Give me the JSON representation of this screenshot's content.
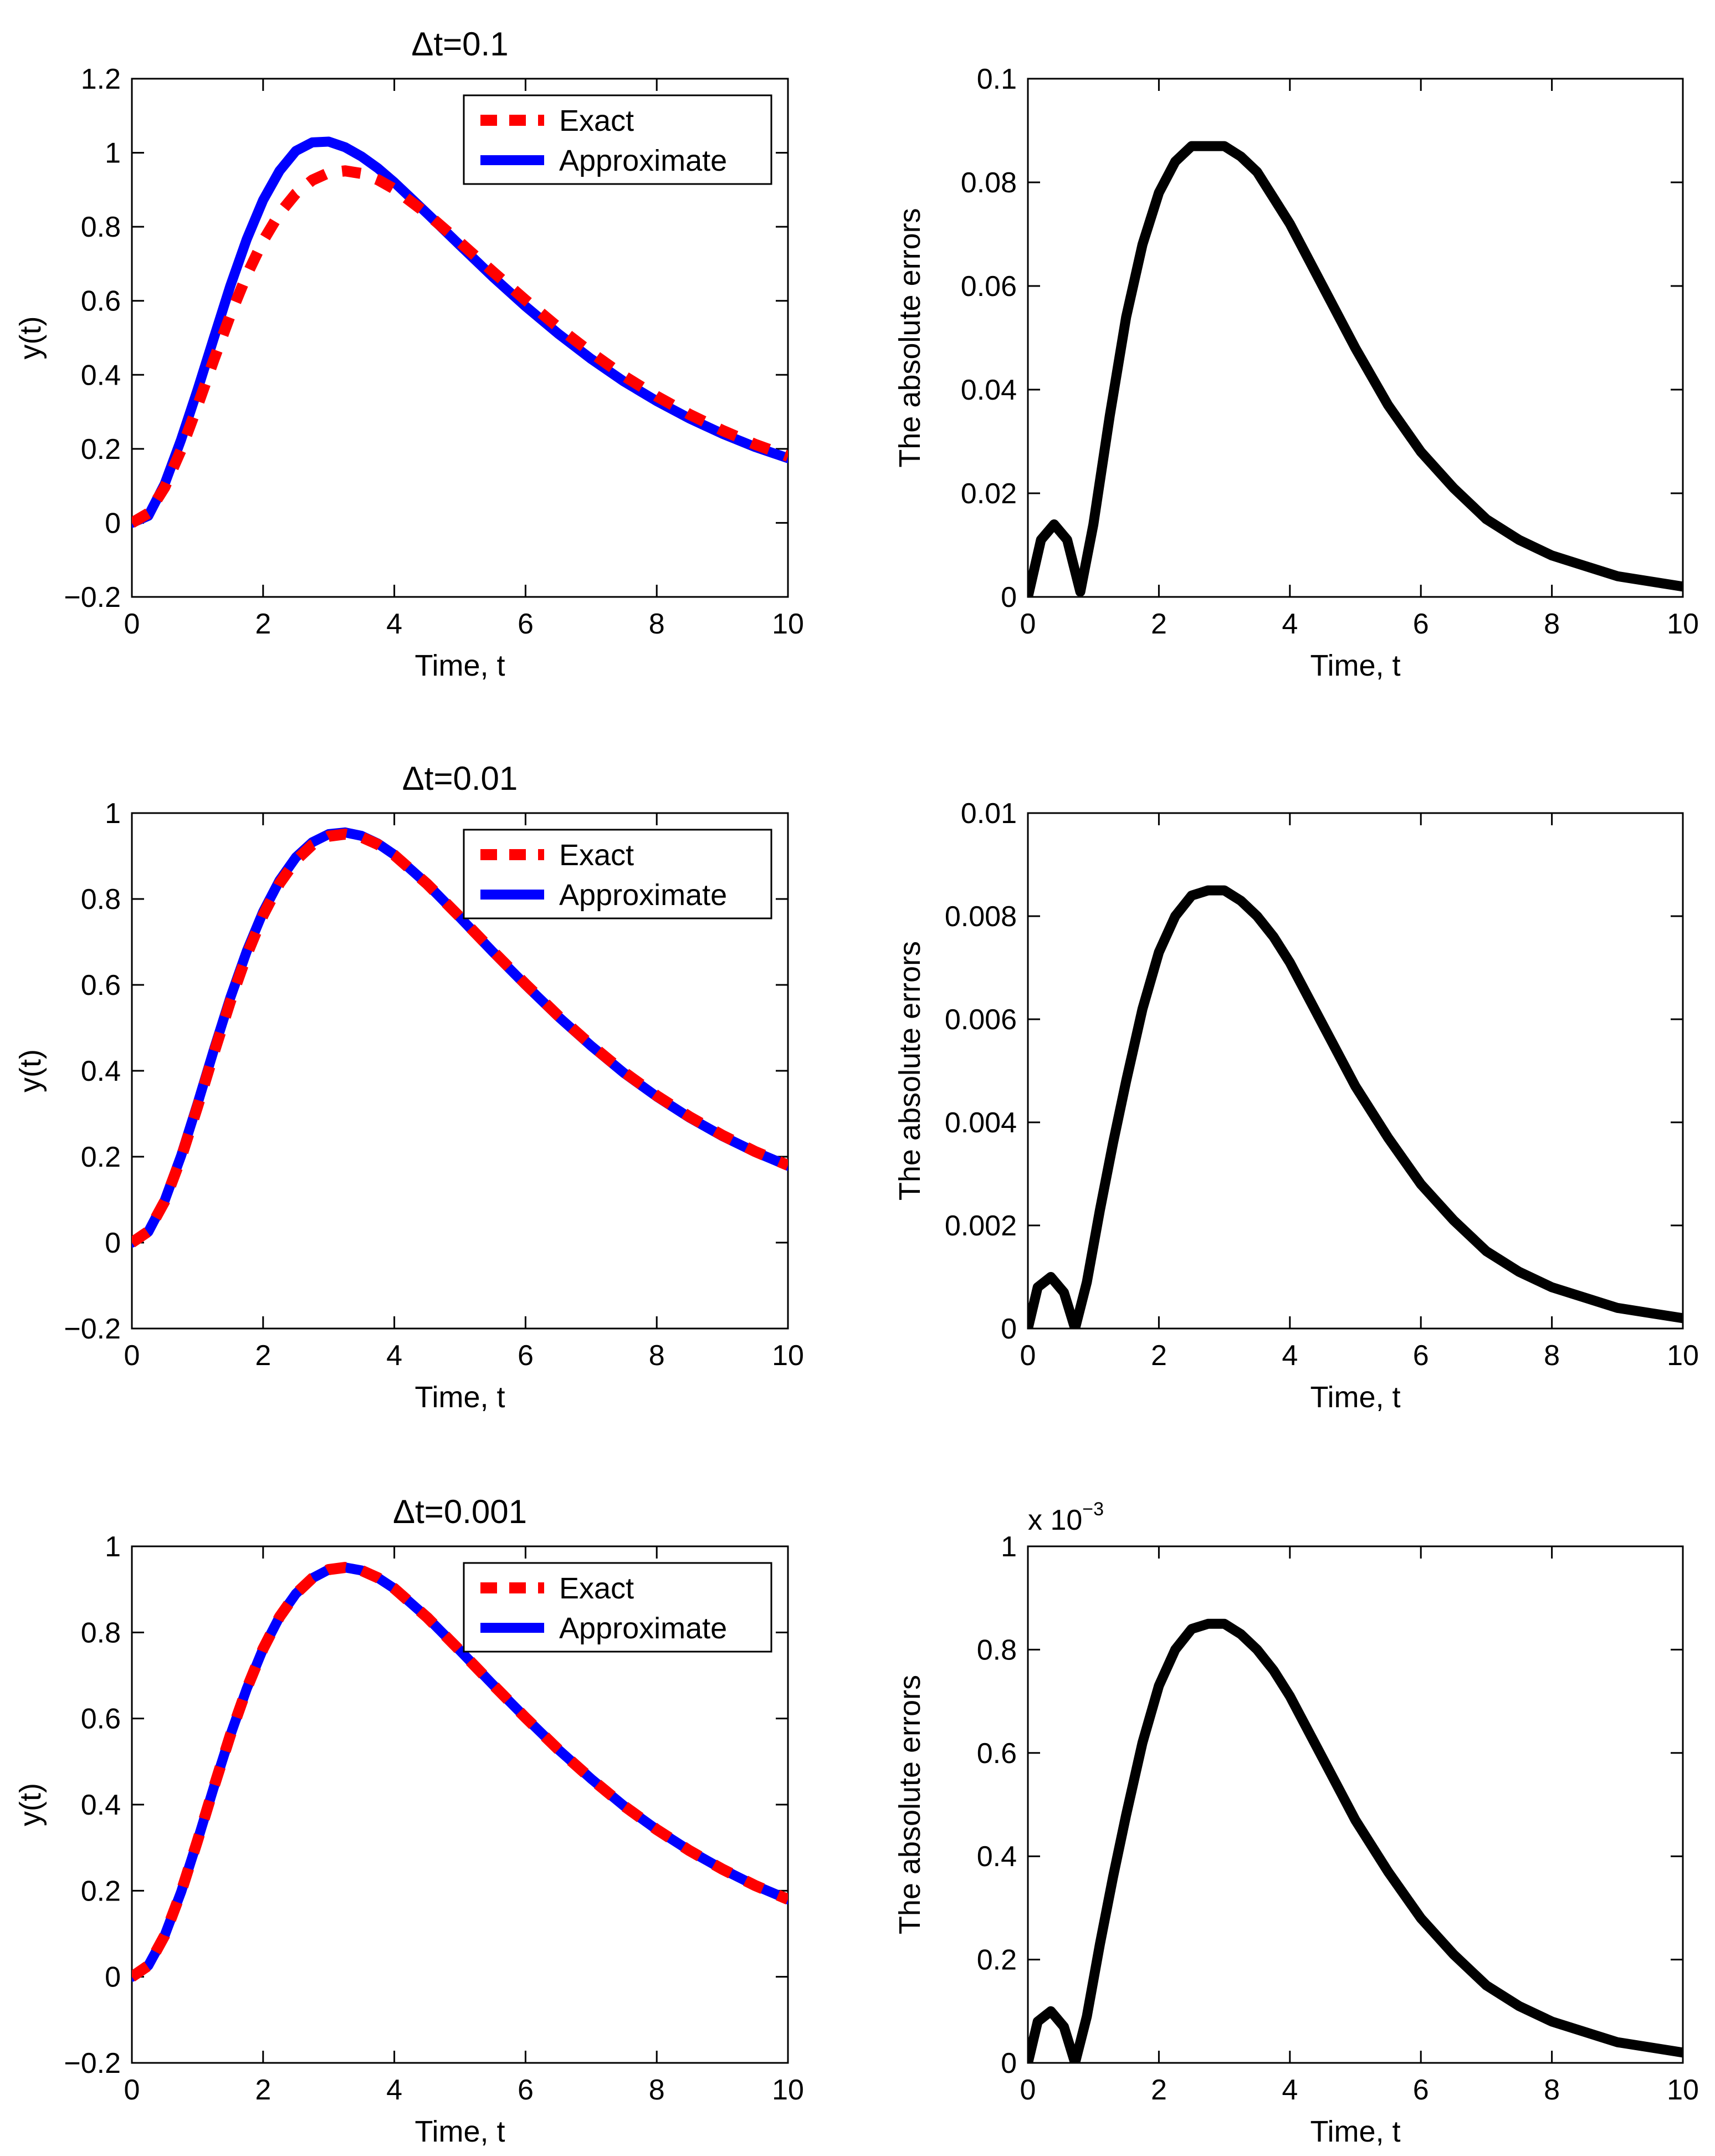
{
  "chart_data": [
    {
      "type": "line",
      "title": "Δt=0.1",
      "xlabel": "Time, t",
      "ylabel": "y(t)",
      "xlim": [
        0,
        10
      ],
      "ylim": [
        -0.2,
        1.2
      ],
      "xticks": [
        "0",
        "2",
        "4",
        "6",
        "8",
        "10"
      ],
      "yticks": [
        "−0.2",
        "0",
        "0.2",
        "0.4",
        "0.6",
        "0.8",
        "1",
        "1.2"
      ],
      "legend_position": "top-right",
      "series": [
        {
          "name": "Exact",
          "color": "#ff0000",
          "style": "dashed",
          "x": [
            0,
            0.25,
            0.5,
            0.75,
            1,
            1.25,
            1.5,
            1.75,
            2,
            2.25,
            2.5,
            2.75,
            3,
            3.25,
            3.5,
            3.75,
            4,
            4.5,
            5,
            5.5,
            6,
            6.5,
            7,
            7.5,
            8,
            8.5,
            9,
            9.5,
            10
          ],
          "y": [
            0,
            0.026,
            0.096,
            0.197,
            0.316,
            0.441,
            0.561,
            0.669,
            0.762,
            0.836,
            0.89,
            0.926,
            0.946,
            0.951,
            0.944,
            0.927,
            0.902,
            0.835,
            0.758,
            0.679,
            0.602,
            0.528,
            0.46,
            0.397,
            0.342,
            0.293,
            0.25,
            0.212,
            0.18
          ]
        },
        {
          "name": "Approximate",
          "color": "#0000ff",
          "style": "solid",
          "x": [
            0,
            0.25,
            0.5,
            0.75,
            1,
            1.25,
            1.5,
            1.75,
            2,
            2.25,
            2.5,
            2.75,
            3,
            3.25,
            3.5,
            3.75,
            4,
            4.5,
            5,
            5.5,
            6,
            6.5,
            7,
            7.5,
            8,
            8.5,
            9,
            9.5,
            10
          ],
          "y": [
            0,
            0.019,
            0.105,
            0.225,
            0.359,
            0.5,
            0.64,
            0.766,
            0.872,
            0.951,
            1.005,
            1.028,
            1.03,
            1.015,
            0.99,
            0.958,
            0.92,
            0.836,
            0.75,
            0.665,
            0.585,
            0.511,
            0.443,
            0.382,
            0.329,
            0.282,
            0.241,
            0.205,
            0.175
          ]
        }
      ]
    },
    {
      "type": "line",
      "title": "",
      "xlabel": "Time, t",
      "ylabel": "The absolute errors",
      "xlim": [
        0,
        10
      ],
      "ylim": [
        0,
        0.1
      ],
      "xticks": [
        "0",
        "2",
        "4",
        "6",
        "8",
        "10"
      ],
      "yticks": [
        "0",
        "0.02",
        "0.04",
        "0.06",
        "0.08",
        "0.1"
      ],
      "series": [
        {
          "color": "#000000",
          "style": "solid",
          "x": [
            0,
            0.2,
            0.4,
            0.6,
            0.8,
            1,
            1.25,
            1.5,
            1.75,
            2,
            2.25,
            2.5,
            2.75,
            3,
            3.25,
            3.5,
            3.75,
            4,
            4.5,
            5,
            5.5,
            6,
            6.5,
            7,
            7.5,
            8,
            8.5,
            9,
            9.5,
            10
          ],
          "y": [
            0,
            0.011,
            0.014,
            0.011,
            0.001,
            0.014,
            0.035,
            0.054,
            0.068,
            0.078,
            0.084,
            0.087,
            0.087,
            0.087,
            0.085,
            0.082,
            0.077,
            0.072,
            0.06,
            0.048,
            0.037,
            0.028,
            0.021,
            0.015,
            0.011,
            0.008,
            0.006,
            0.004,
            0.003,
            0.002
          ]
        }
      ]
    },
    {
      "type": "line",
      "title": "Δt=0.01",
      "xlabel": "Time, t",
      "ylabel": "y(t)",
      "xlim": [
        0,
        10
      ],
      "ylim": [
        -0.2,
        1
      ],
      "xticks": [
        "0",
        "2",
        "4",
        "6",
        "8",
        "10"
      ],
      "yticks": [
        "−0.2",
        "0",
        "0.2",
        "0.4",
        "0.6",
        "0.8",
        "1"
      ],
      "legend_position": "top-right",
      "series": [
        {
          "name": "Exact",
          "color": "#ff0000",
          "style": "dashed",
          "x": [
            0,
            0.25,
            0.5,
            0.75,
            1,
            1.25,
            1.5,
            1.75,
            2,
            2.25,
            2.5,
            2.75,
            3,
            3.25,
            3.5,
            3.75,
            4,
            4.5,
            5,
            5.5,
            6,
            6.5,
            7,
            7.5,
            8,
            8.5,
            9,
            9.5,
            10
          ],
          "y": [
            0,
            0.026,
            0.096,
            0.197,
            0.316,
            0.441,
            0.561,
            0.669,
            0.762,
            0.836,
            0.89,
            0.926,
            0.946,
            0.951,
            0.944,
            0.927,
            0.902,
            0.835,
            0.758,
            0.679,
            0.602,
            0.528,
            0.46,
            0.397,
            0.342,
            0.293,
            0.25,
            0.212,
            0.18
          ]
        },
        {
          "name": "Approximate",
          "color": "#0000ff",
          "style": "solid",
          "x": [
            0,
            0.25,
            0.5,
            0.75,
            1,
            1.25,
            1.5,
            1.75,
            2,
            2.25,
            2.5,
            2.75,
            3,
            3.25,
            3.5,
            3.75,
            4,
            4.5,
            5,
            5.5,
            6,
            6.5,
            7,
            7.5,
            8,
            8.5,
            9,
            9.5,
            10
          ],
          "y": [
            0,
            0.025,
            0.098,
            0.202,
            0.323,
            0.449,
            0.57,
            0.678,
            0.77,
            0.843,
            0.897,
            0.932,
            0.951,
            0.955,
            0.947,
            0.929,
            0.903,
            0.835,
            0.757,
            0.677,
            0.6,
            0.526,
            0.458,
            0.395,
            0.34,
            0.291,
            0.248,
            0.211,
            0.179
          ]
        }
      ]
    },
    {
      "type": "line",
      "title": "",
      "xlabel": "Time, t",
      "ylabel": "The absolute errors",
      "xlim": [
        0,
        10
      ],
      "ylim": [
        0,
        0.01
      ],
      "xticks": [
        "0",
        "2",
        "4",
        "6",
        "8",
        "10"
      ],
      "yticks": [
        "0",
        "0.002",
        "0.004",
        "0.006",
        "0.008",
        "0.01"
      ],
      "series": [
        {
          "color": "#000000",
          "style": "solid",
          "x": [
            0,
            0.15,
            0.35,
            0.55,
            0.72,
            0.9,
            1.1,
            1.3,
            1.5,
            1.75,
            2,
            2.25,
            2.5,
            2.75,
            3,
            3.25,
            3.5,
            3.75,
            4,
            4.5,
            5,
            5.5,
            6,
            6.5,
            7,
            7.5,
            8,
            8.5,
            9,
            9.5,
            10
          ],
          "y": [
            0,
            0.0008,
            0.001,
            0.0007,
            0,
            0.0009,
            0.0023,
            0.0036,
            0.0048,
            0.0062,
            0.0073,
            0.008,
            0.0084,
            0.0085,
            0.0085,
            0.0083,
            0.008,
            0.0076,
            0.0071,
            0.0059,
            0.0047,
            0.0037,
            0.0028,
            0.0021,
            0.0015,
            0.0011,
            0.0008,
            0.0006,
            0.0004,
            0.0003,
            0.0002
          ]
        }
      ]
    },
    {
      "type": "line",
      "title": "Δt=0.001",
      "xlabel": "Time, t",
      "ylabel": "y(t)",
      "xlim": [
        0,
        10
      ],
      "ylim": [
        -0.2,
        1
      ],
      "xticks": [
        "0",
        "2",
        "4",
        "6",
        "8",
        "10"
      ],
      "yticks": [
        "−0.2",
        "0",
        "0.2",
        "0.4",
        "0.6",
        "0.8",
        "1"
      ],
      "legend_position": "top-right",
      "series": [
        {
          "name": "Exact",
          "color": "#ff0000",
          "style": "dashed",
          "x": [
            0,
            0.25,
            0.5,
            0.75,
            1,
            1.25,
            1.5,
            1.75,
            2,
            2.25,
            2.5,
            2.75,
            3,
            3.25,
            3.5,
            3.75,
            4,
            4.5,
            5,
            5.5,
            6,
            6.5,
            7,
            7.5,
            8,
            8.5,
            9,
            9.5,
            10
          ],
          "y": [
            0,
            0.026,
            0.096,
            0.197,
            0.316,
            0.441,
            0.561,
            0.669,
            0.762,
            0.836,
            0.89,
            0.926,
            0.946,
            0.951,
            0.944,
            0.927,
            0.902,
            0.835,
            0.758,
            0.679,
            0.602,
            0.528,
            0.46,
            0.397,
            0.342,
            0.293,
            0.25,
            0.212,
            0.18
          ]
        },
        {
          "name": "Approximate",
          "color": "#0000ff",
          "style": "solid",
          "x": [
            0,
            0.25,
            0.5,
            0.75,
            1,
            1.25,
            1.5,
            1.75,
            2,
            2.25,
            2.5,
            2.75,
            3,
            3.25,
            3.5,
            3.75,
            4,
            4.5,
            5,
            5.5,
            6,
            6.5,
            7,
            7.5,
            8,
            8.5,
            9,
            9.5,
            10
          ],
          "y": [
            0,
            0.026,
            0.096,
            0.197,
            0.316,
            0.441,
            0.561,
            0.669,
            0.762,
            0.836,
            0.89,
            0.926,
            0.946,
            0.951,
            0.944,
            0.927,
            0.902,
            0.835,
            0.758,
            0.679,
            0.602,
            0.528,
            0.46,
            0.397,
            0.342,
            0.293,
            0.25,
            0.212,
            0.18
          ]
        }
      ]
    },
    {
      "type": "line",
      "title": "",
      "xlabel": "Time, t",
      "ylabel": "The absolute errors",
      "xlim": [
        0,
        10
      ],
      "ylim": [
        0,
        1
      ],
      "scale_label": "x 10",
      "scale_exponent": "−3",
      "xticks": [
        "0",
        "2",
        "4",
        "6",
        "8",
        "10"
      ],
      "yticks": [
        "0",
        "0.2",
        "0.4",
        "0.6",
        "0.8",
        "1"
      ],
      "series": [
        {
          "color": "#000000",
          "style": "solid",
          "x": [
            0,
            0.15,
            0.35,
            0.55,
            0.72,
            0.9,
            1.1,
            1.3,
            1.5,
            1.75,
            2,
            2.25,
            2.5,
            2.75,
            3,
            3.25,
            3.5,
            3.75,
            4,
            4.5,
            5,
            5.5,
            6,
            6.5,
            7,
            7.5,
            8,
            8.5,
            9,
            9.5,
            10
          ],
          "y": [
            0,
            0.08,
            0.1,
            0.07,
            0,
            0.09,
            0.23,
            0.36,
            0.48,
            0.62,
            0.73,
            0.8,
            0.84,
            0.85,
            0.85,
            0.83,
            0.8,
            0.76,
            0.71,
            0.59,
            0.47,
            0.37,
            0.28,
            0.21,
            0.15,
            0.11,
            0.08,
            0.06,
            0.04,
            0.03,
            0.02
          ]
        }
      ]
    }
  ]
}
